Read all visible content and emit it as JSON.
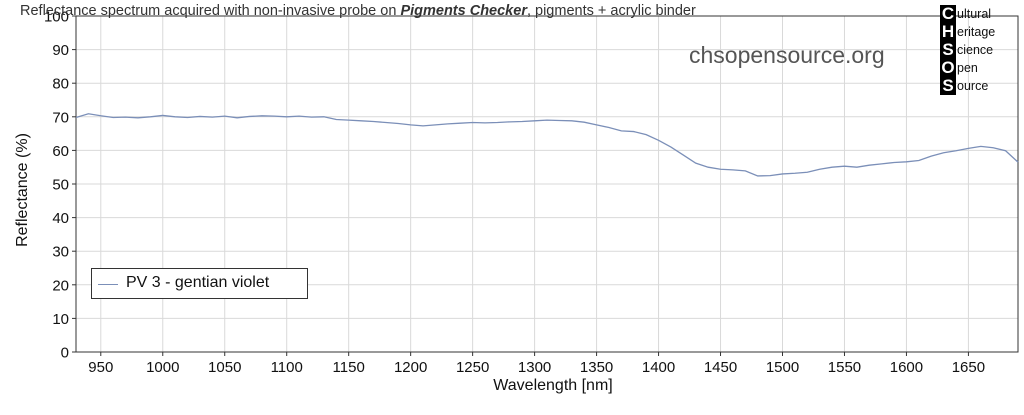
{
  "title": {
    "prefix": "Reflectance spectrum acquired with non-invasive probe on ",
    "bold": "Pigments Checker",
    "suffix": ", pigments + acrylic binder"
  },
  "watermark": "chsopensource.org",
  "logo": [
    {
      "letter": "C",
      "rest": "ultural"
    },
    {
      "letter": "H",
      "rest": "eritage"
    },
    {
      "letter": "S",
      "rest": "cience"
    },
    {
      "letter": "O",
      "rest": "pen"
    },
    {
      "letter": "S",
      "rest": "ource"
    }
  ],
  "colors": {
    "series": "#7b8fb8",
    "grid": "#d9d9d9",
    "axis": "#333333"
  },
  "chart_data": {
    "type": "line",
    "xlabel": "Wavelength [nm]",
    "ylabel": "Reflectance (%)",
    "xlim": [
      930,
      1690
    ],
    "ylim": [
      0,
      100
    ],
    "xticks": [
      950,
      1000,
      1050,
      1100,
      1150,
      1200,
      1250,
      1300,
      1350,
      1400,
      1450,
      1500,
      1550,
      1600,
      1650
    ],
    "yticks": [
      0,
      10,
      20,
      30,
      40,
      50,
      60,
      70,
      80,
      90,
      100
    ],
    "grid": true,
    "legend_position": "bottom-left",
    "series": [
      {
        "name": "PV 3 - gentian violet",
        "x": [
          930,
          940,
          950,
          960,
          970,
          980,
          990,
          1000,
          1010,
          1020,
          1030,
          1040,
          1050,
          1060,
          1070,
          1080,
          1090,
          1100,
          1110,
          1120,
          1130,
          1140,
          1150,
          1160,
          1170,
          1180,
          1190,
          1200,
          1210,
          1220,
          1230,
          1240,
          1250,
          1260,
          1270,
          1280,
          1290,
          1300,
          1310,
          1320,
          1330,
          1340,
          1350,
          1360,
          1370,
          1380,
          1390,
          1400,
          1410,
          1420,
          1430,
          1440,
          1450,
          1460,
          1470,
          1480,
          1490,
          1500,
          1510,
          1520,
          1530,
          1540,
          1550,
          1560,
          1570,
          1580,
          1590,
          1600,
          1610,
          1620,
          1630,
          1640,
          1650,
          1660,
          1670,
          1680,
          1690
        ],
        "y": [
          69.8,
          70.9,
          70.3,
          69.8,
          69.9,
          69.7,
          70.0,
          70.4,
          70.0,
          69.8,
          70.1,
          69.9,
          70.2,
          69.7,
          70.1,
          70.3,
          70.2,
          70.0,
          70.2,
          69.9,
          70.0,
          69.2,
          69.0,
          68.8,
          68.6,
          68.3,
          68.0,
          67.6,
          67.3,
          67.6,
          67.9,
          68.1,
          68.3,
          68.2,
          68.3,
          68.5,
          68.6,
          68.8,
          69.0,
          68.9,
          68.8,
          68.4,
          67.6,
          66.8,
          65.8,
          65.6,
          64.7,
          63.0,
          61.0,
          58.6,
          56.2,
          55.0,
          54.4,
          54.2,
          53.9,
          52.4,
          52.5,
          53.0,
          53.2,
          53.5,
          54.4,
          55.0,
          55.3,
          55.0,
          55.6,
          56.0,
          56.4,
          56.6,
          57.0,
          58.3,
          59.3,
          59.9,
          60.6,
          61.2,
          60.8,
          59.9,
          56.5
        ]
      }
    ]
  }
}
